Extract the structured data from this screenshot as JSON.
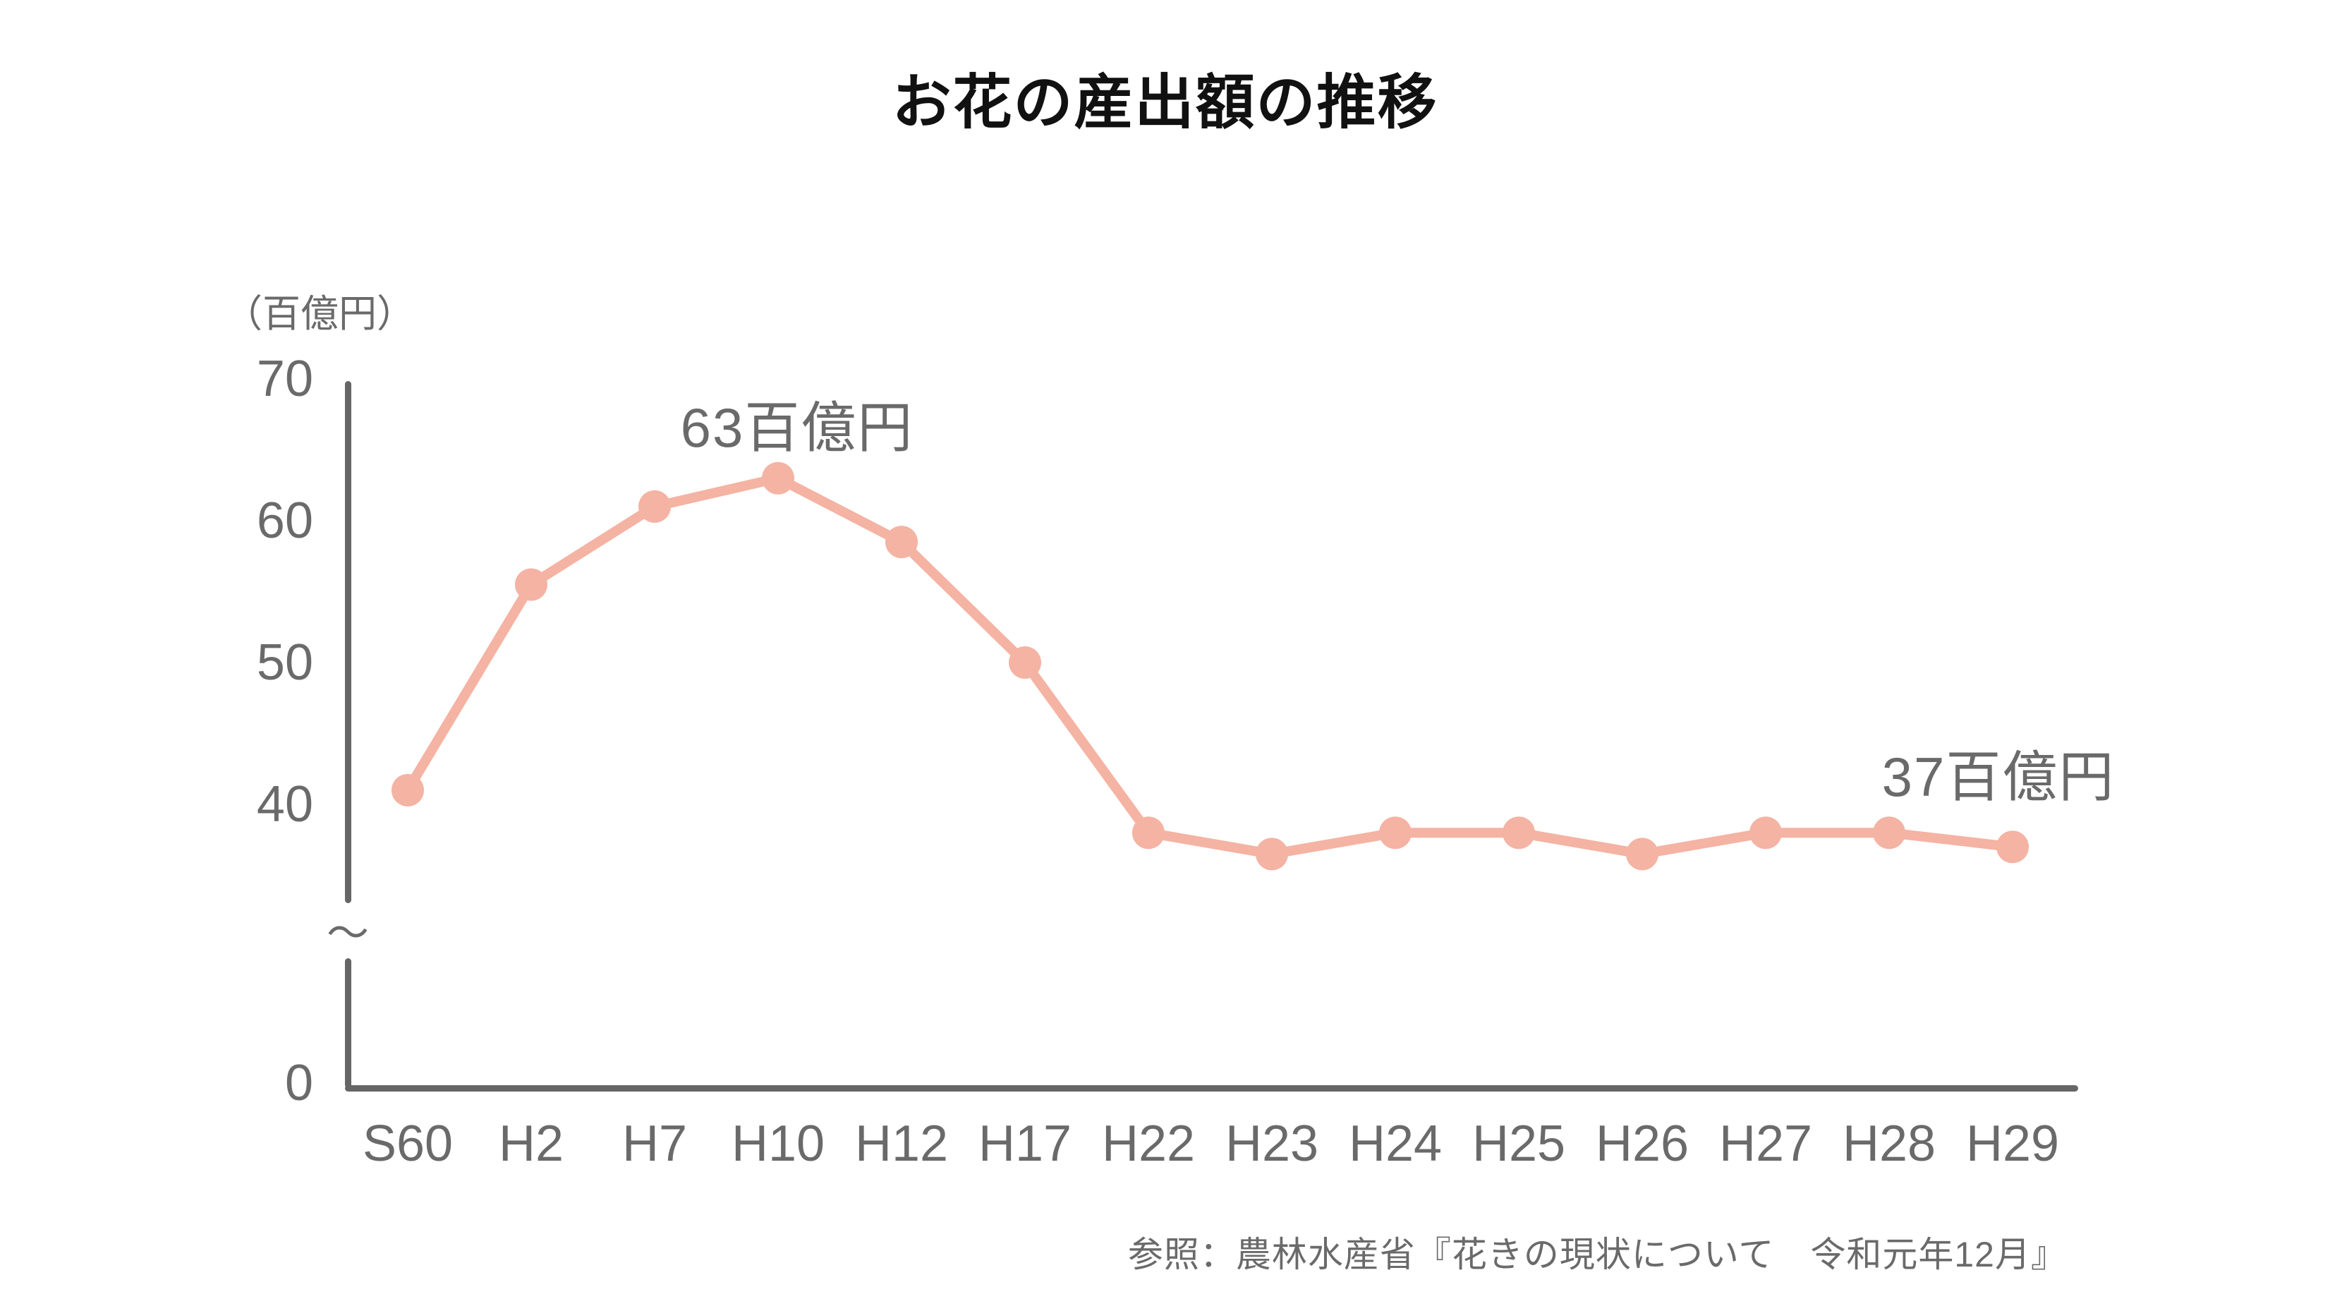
{
  "title": "お花の産出額の推移",
  "source": "参照：農林水産省『花きの現状について　令和元年12月』",
  "chart_data": {
    "type": "line",
    "title": "お花の産出額の推移",
    "ylabel": "（百億円）",
    "xlabel": "",
    "categories": [
      "S60",
      "H2",
      "H7",
      "H10",
      "H12",
      "H17",
      "H22",
      "H23",
      "H24",
      "H25",
      "H26",
      "H27",
      "H28",
      "H29"
    ],
    "values": [
      41,
      55.5,
      61,
      63,
      58.5,
      50,
      38,
      36.5,
      38,
      38,
      36.5,
      38,
      38,
      37
    ],
    "series_name": "お花の産出額",
    "y_ticks": [
      70,
      60,
      50,
      40,
      0
    ],
    "ylim_shown": [
      0,
      70
    ],
    "axis_break": true,
    "axis_break_symbol": "〜",
    "grid": false,
    "legend_position": "none",
    "annotations": [
      {
        "text": "63百億円",
        "category": "H10",
        "value": 63
      },
      {
        "text": "37百億円",
        "category": "H29",
        "value": 37
      }
    ],
    "colors": {
      "line": "#F4B3A3",
      "text": "#6A6A6A",
      "axis": "#666666",
      "title": "#111111"
    }
  }
}
